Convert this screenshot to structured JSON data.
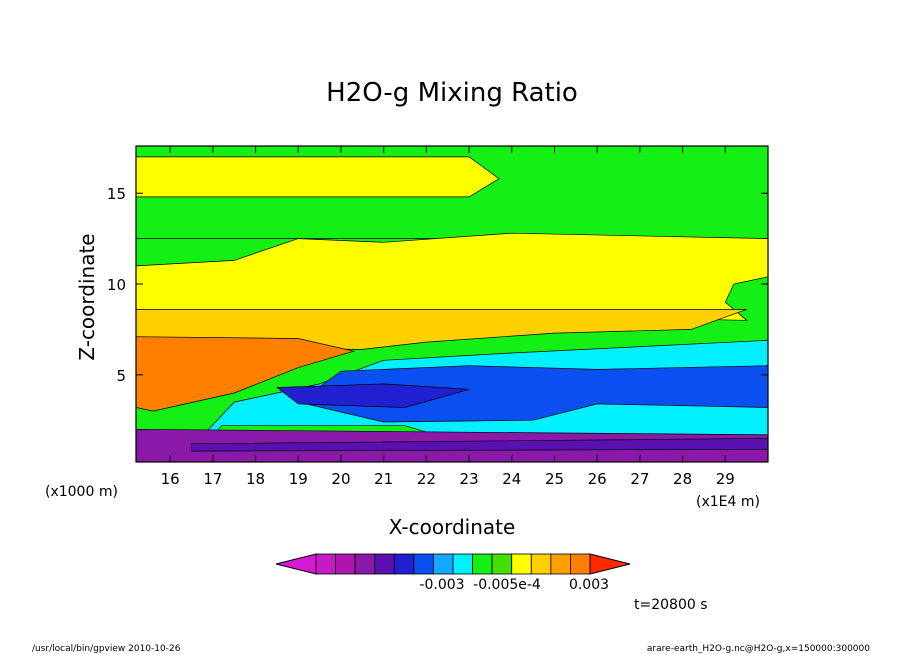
{
  "chart_data": {
    "type": "heatmap",
    "title": "H2O-g Mixing Ratio",
    "xlabel": "X-coordinate",
    "ylabel": "Z-coordinate",
    "x_unit_label": "(x1E4 m)",
    "y_unit_label": "(x1000 m)",
    "xlim": [
      15.2,
      30.0
    ],
    "ylim": [
      0.2,
      17.6
    ],
    "x_ticks": [
      16,
      17,
      18,
      19,
      20,
      21,
      22,
      23,
      24,
      25,
      26,
      27,
      28,
      29
    ],
    "y_ticks": [
      5,
      10,
      15
    ],
    "colorbar": {
      "labels": [
        "-0.003",
        "-0.005e-4",
        "0.003"
      ],
      "colors": [
        "#d41ad4",
        "#c61ac6",
        "#b014b0",
        "#8a18a8",
        "#5a10b0",
        "#2020d0",
        "#0a50f0",
        "#15a8ff",
        "#00f0ff",
        "#14f014",
        "#46e000",
        "#ffff00",
        "#ffd000",
        "#ffa000",
        "#ff8000",
        "#ff2a00"
      ]
    },
    "time_label": "t=20800 s",
    "footer_left": "/usr/local/bin/gpview  2010-10-26",
    "footer_right": "arare-earth_H2O-g.nc@H2O-g,x=150000:300000",
    "bands": [
      {
        "color": "#14f014",
        "rows": [
          [
            15.2,
            17.6
          ],
          [
            30.0,
            17.6
          ],
          [
            30.0,
            12.5
          ],
          [
            15.2,
            12.5
          ]
        ]
      },
      {
        "color": "#ffff00",
        "rows": [
          [
            15.2,
            17.0
          ],
          [
            23.0,
            17.0
          ],
          [
            23.7,
            15.8
          ],
          [
            23.0,
            14.8
          ],
          [
            15.2,
            14.8
          ]
        ]
      },
      {
        "color": "#ffff00",
        "rows": [
          [
            15.2,
            11.0
          ],
          [
            17.5,
            11.3
          ],
          [
            19.0,
            12.5
          ],
          [
            21.0,
            12.3
          ],
          [
            24.0,
            12.8
          ],
          [
            30.0,
            12.5
          ],
          [
            30.0,
            10.4
          ],
          [
            29.2,
            10.0
          ],
          [
            29.0,
            9.0
          ],
          [
            29.5,
            8.0
          ],
          [
            15.2,
            8.6
          ]
        ]
      },
      {
        "color": "#ffd000",
        "rows": [
          [
            15.2,
            8.6
          ],
          [
            29.5,
            8.6
          ],
          [
            28.2,
            7.5
          ],
          [
            25.0,
            7.3
          ],
          [
            22.0,
            6.8
          ],
          [
            20.5,
            6.4
          ],
          [
            15.2,
            6.5
          ]
        ]
      },
      {
        "color": "#ff8000",
        "rows": [
          [
            15.2,
            7.1
          ],
          [
            19.0,
            7.0
          ],
          [
            20.3,
            6.3
          ],
          [
            19.0,
            5.4
          ],
          [
            17.5,
            4.0
          ],
          [
            15.6,
            3.0
          ],
          [
            15.2,
            3.2
          ]
        ]
      },
      {
        "color": "#00f0ff",
        "rows": [
          [
            19.5,
            4.5
          ],
          [
            21.0,
            5.8
          ],
          [
            24.0,
            6.2
          ],
          [
            30.0,
            6.9
          ],
          [
            30.0,
            1.0
          ],
          [
            16.5,
            1.0
          ],
          [
            17.5,
            3.5
          ]
        ]
      },
      {
        "color": "#0a50f0",
        "rows": [
          [
            20.0,
            5.2
          ],
          [
            23.0,
            5.5
          ],
          [
            26.0,
            5.3
          ],
          [
            30.0,
            5.5
          ],
          [
            30.0,
            3.2
          ],
          [
            26.0,
            3.4
          ],
          [
            24.5,
            2.5
          ],
          [
            21.0,
            2.4
          ],
          [
            19.0,
            3.5
          ]
        ]
      },
      {
        "color": "#2020d0",
        "rows": [
          [
            18.5,
            4.3
          ],
          [
            21.0,
            4.5
          ],
          [
            23.0,
            4.2
          ],
          [
            21.5,
            3.2
          ],
          [
            19.0,
            3.4
          ]
        ]
      },
      {
        "color": "#14f014",
        "rows": [
          [
            17.2,
            2.2
          ],
          [
            21.5,
            2.2
          ],
          [
            22.5,
            1.5
          ],
          [
            17.0,
            1.6
          ]
        ]
      },
      {
        "color": "#8a18a8",
        "rows": [
          [
            15.2,
            2.0
          ],
          [
            30.0,
            1.7
          ],
          [
            30.0,
            0.2
          ],
          [
            15.2,
            0.2
          ]
        ]
      },
      {
        "color": "#5a10b0",
        "rows": [
          [
            16.5,
            1.2
          ],
          [
            30.0,
            1.5
          ],
          [
            30.0,
            0.9
          ],
          [
            16.5,
            0.8
          ]
        ]
      }
    ]
  }
}
